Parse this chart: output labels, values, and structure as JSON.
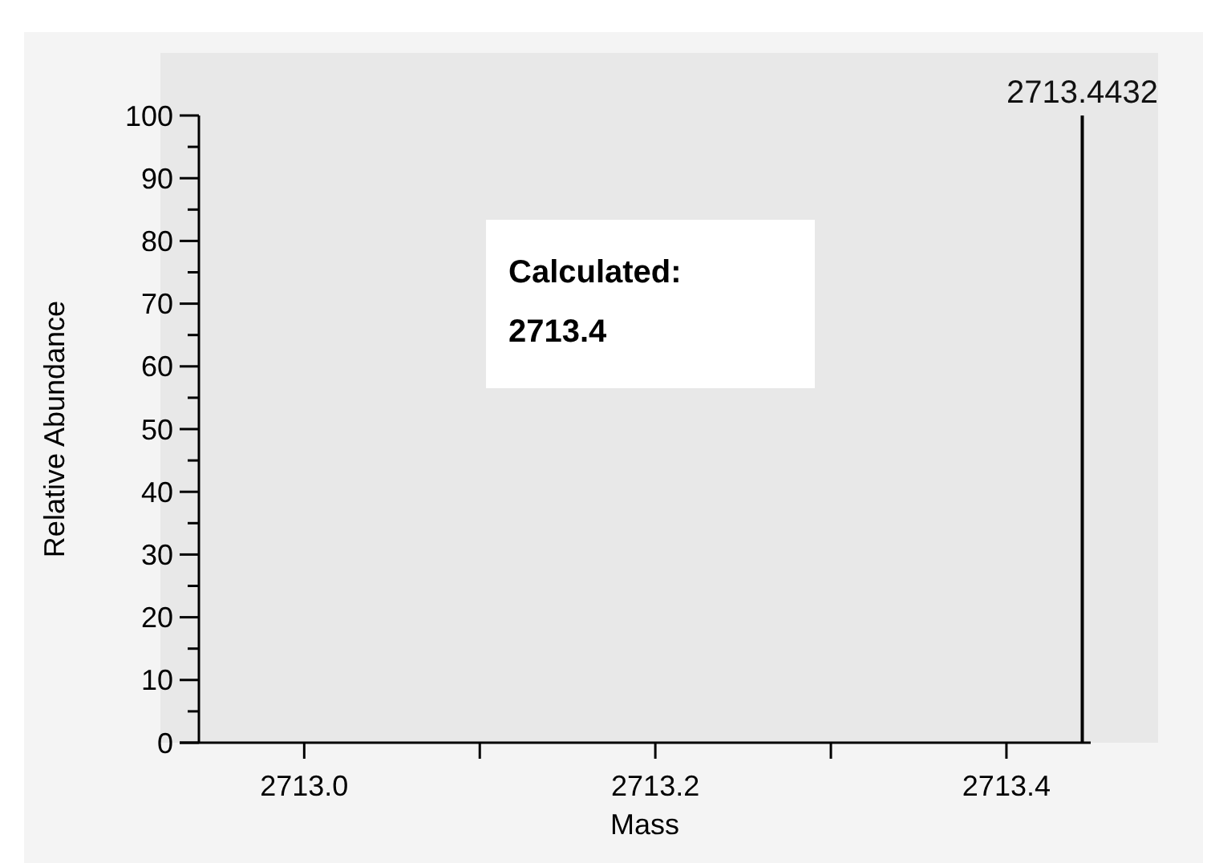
{
  "chart_data": {
    "type": "bar",
    "xlabel": "Mass",
    "ylabel": "Relative Abundance",
    "x": [
      2713.4432
    ],
    "values": [
      100
    ],
    "color": "#000000",
    "xlim": [
      2712.94,
      2713.448
    ],
    "xticks": [
      {
        "value": 2713.0,
        "label": "2713.0"
      },
      {
        "value": 2713.1,
        "label": null
      },
      {
        "value": 2713.2,
        "label": "2713.2"
      },
      {
        "value": 2713.3,
        "label": null
      },
      {
        "value": 2713.4,
        "label": "2713.4"
      }
    ],
    "ylim": [
      0,
      100
    ],
    "yticks": [
      0,
      {
        "value": 5,
        "label": null
      },
      10,
      {
        "value": 15,
        "label": null
      },
      20,
      {
        "value": 25,
        "label": null
      },
      30,
      {
        "value": 35,
        "label": null
      },
      40,
      {
        "value": 45,
        "label": null
      },
      50,
      {
        "value": 55,
        "label": null
      },
      60,
      {
        "value": 65,
        "label": null
      },
      70,
      {
        "value": 75,
        "label": null
      },
      80,
      {
        "value": 85,
        "label": null
      },
      90,
      {
        "value": 95,
        "label": null
      },
      100
    ],
    "annotations": [
      "Calculated:\n2713.4",
      {
        "text": "2713.4432",
        "x": 2713.4432,
        "y": 100
      }
    ],
    "grid": false
  }
}
